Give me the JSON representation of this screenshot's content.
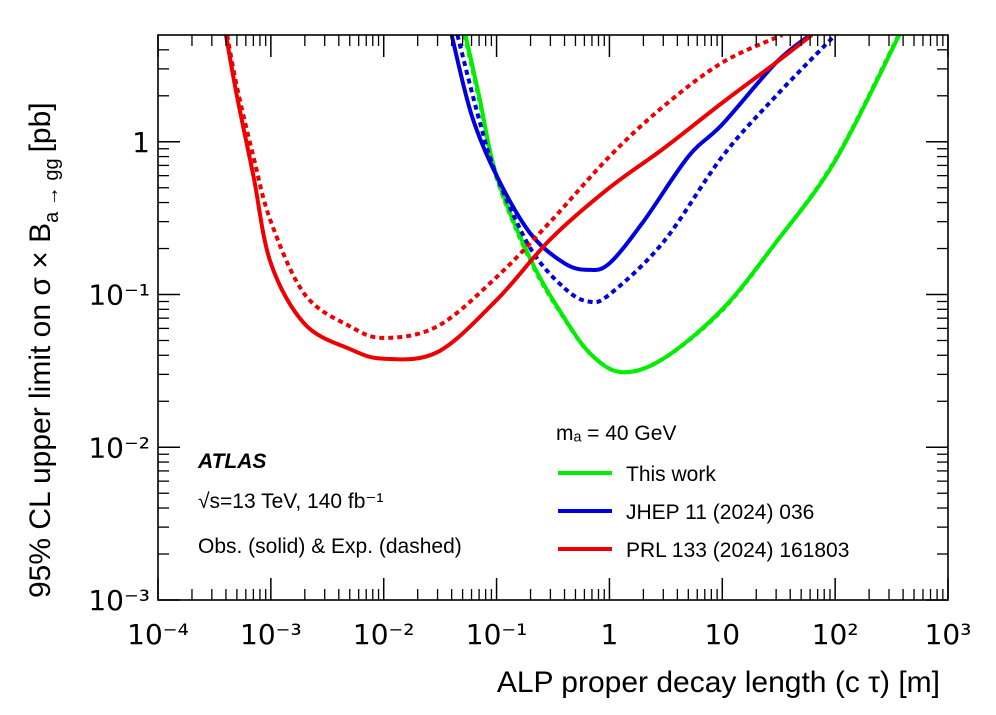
{
  "chart_data": {
    "type": "line",
    "xlabel": "ALP proper decay length (c τ) [m]",
    "ylabel": "95% CL upper limit on σ × B",
    "ylabel_sub": "a → gg",
    "ylabel_unit": "[pb]",
    "xscale": "log",
    "yscale": "log",
    "xlim": [
      0.0001,
      1000
    ],
    "ylim": [
      0.001,
      5
    ],
    "xticks": [
      {
        "value": 0.0001,
        "label": "10⁻⁴"
      },
      {
        "value": 0.001,
        "label": "10⁻³"
      },
      {
        "value": 0.01,
        "label": "10⁻²"
      },
      {
        "value": 0.1,
        "label": "10⁻¹"
      },
      1,
      10,
      {
        "value": 100,
        "label": "10²"
      },
      {
        "value": 1000,
        "label": "10³"
      }
    ],
    "yticks": [
      {
        "value": 0.001,
        "label": "10⁻³"
      },
      {
        "value": 0.01,
        "label": "10⁻²"
      },
      {
        "value": 0.1,
        "label": "10⁻¹"
      },
      1
    ],
    "legend_title": "mₐ = 40 GeV",
    "legend_position": "lower right",
    "annotations": [
      "ATLAS",
      "√s=13 TeV, 140 fb⁻¹",
      "Obs. (solid) & Exp. (dashed)"
    ],
    "series": [
      {
        "name": "This work",
        "color": "#00ee00",
        "x": [
          0.053,
          0.07,
          0.1,
          0.2,
          0.4,
          0.7,
          1.3,
          3,
          10,
          30,
          100,
          370
        ],
        "values": [
          5,
          2,
          0.6,
          0.17,
          0.07,
          0.04,
          0.031,
          0.038,
          0.08,
          0.22,
          0.75,
          5
        ],
        "expected_x": [
          0.052,
          0.07,
          0.1,
          0.2,
          0.4,
          0.7,
          1.3,
          3,
          10,
          30,
          100,
          365
        ],
        "expected": [
          5,
          1.9,
          0.58,
          0.165,
          0.069,
          0.04,
          0.031,
          0.038,
          0.079,
          0.22,
          0.76,
          5
        ]
      },
      {
        "name": "JHEP 11 (2024) 036",
        "color": "#0000dd",
        "x": [
          0.04,
          0.06,
          0.1,
          0.2,
          0.4,
          0.65,
          1,
          2,
          5,
          10,
          30,
          60
        ],
        "values": [
          5,
          1.5,
          0.6,
          0.25,
          0.16,
          0.145,
          0.16,
          0.3,
          0.8,
          1.3,
          3.3,
          5
        ],
        "expected_x": [
          0.045,
          0.07,
          0.1,
          0.2,
          0.4,
          0.65,
          1,
          3,
          10,
          30,
          100
        ],
        "expected": [
          5,
          1.4,
          0.6,
          0.2,
          0.11,
          0.09,
          0.1,
          0.22,
          0.8,
          2,
          5
        ]
      },
      {
        "name": "PRL 133 (2024) 161803",
        "color": "#ee0000",
        "x": [
          0.0004,
          0.0005,
          0.0007,
          0.001,
          0.002,
          0.005,
          0.01,
          0.03,
          0.1,
          0.3,
          1,
          3,
          10,
          30,
          62
        ],
        "values": [
          5,
          2,
          0.6,
          0.16,
          0.064,
          0.044,
          0.038,
          0.042,
          0.092,
          0.23,
          0.5,
          0.9,
          1.8,
          3.3,
          5
        ],
        "expected_x": [
          0.00041,
          0.0005,
          0.0007,
          0.001,
          0.002,
          0.005,
          0.01,
          0.03,
          0.1,
          0.3,
          1,
          3,
          10,
          34
        ],
        "expected": [
          5,
          2.3,
          0.8,
          0.3,
          0.1,
          0.062,
          0.052,
          0.062,
          0.13,
          0.3,
          0.8,
          1.7,
          3.3,
          5
        ]
      }
    ]
  }
}
